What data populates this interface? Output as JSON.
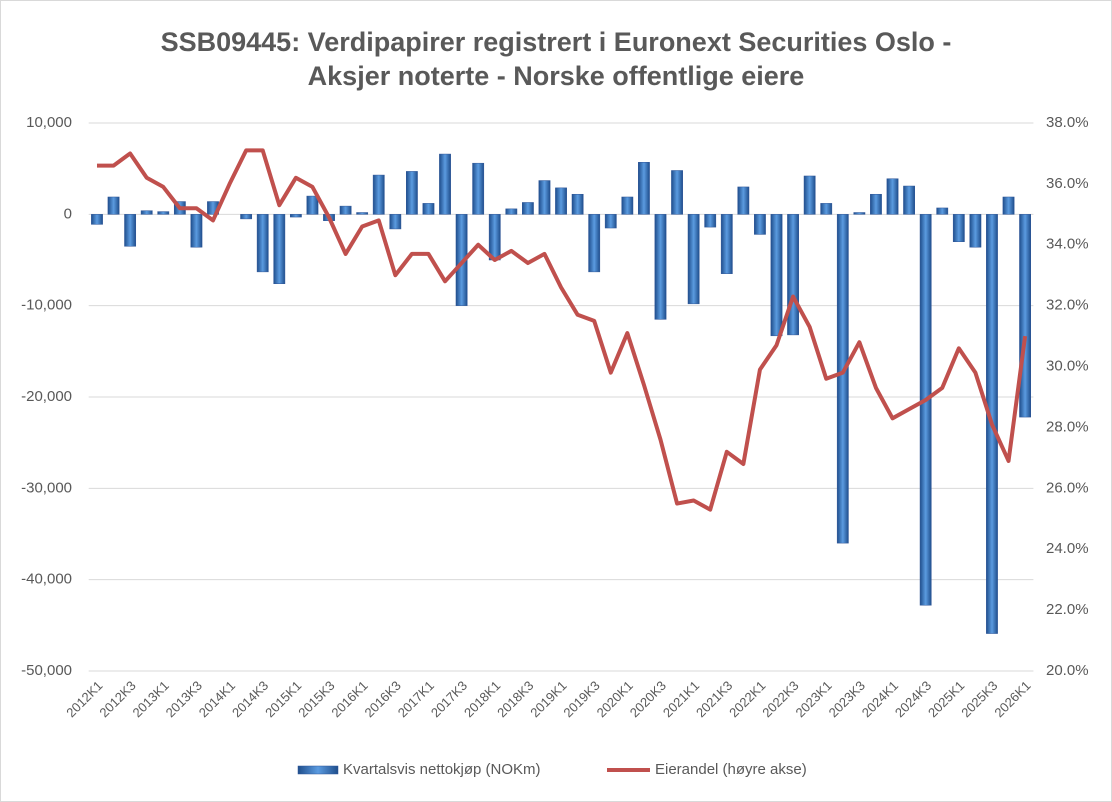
{
  "chart_data": {
    "type": "bar",
    "title": [
      "SSB09445: Verdipapirer registrert i Euronext Securities Oslo -",
      "Aksjer noterte - Norske offentlige eiere"
    ],
    "categories": [
      "2012K1",
      null,
      "2012K3",
      null,
      "2013K1",
      null,
      "2013K3",
      null,
      "2014K1",
      null,
      "2014K3",
      null,
      "2015K1",
      null,
      "2015K3",
      null,
      "2016K1",
      null,
      "2016K3",
      null,
      "2017K1",
      null,
      "2017K3",
      null,
      "2018K1",
      null,
      "2018K3",
      null,
      "2019K1",
      null,
      "2019K3",
      null,
      "2020K1",
      null,
      "2020K3",
      null,
      "2021K1",
      null,
      "2021K3",
      null,
      "2022K1",
      null,
      "2022K3",
      null,
      "2023K1",
      null,
      "2023K3",
      null,
      "2024K1",
      null,
      "2024K3",
      null,
      "2025K1",
      null,
      "2025K3",
      null,
      "2026K1"
    ],
    "series": [
      {
        "name": "Kvartalsvis nettokjøp (NOKm)",
        "type": "bar",
        "color": "#2f5597",
        "axis": "y",
        "values": [
          -1100,
          1900,
          -3500,
          400,
          300,
          1400,
          -3600,
          1400,
          0,
          -500,
          -6300,
          -7600,
          -300,
          2000,
          -700,
          900,
          200,
          4300,
          -1600,
          4700,
          1200,
          6600,
          -10000,
          5600,
          -5000,
          600,
          1300,
          3700,
          2900,
          2200,
          -6300,
          -1500,
          1900,
          5700,
          -11500,
          4800,
          -9800,
          -1400,
          -6500,
          3000,
          -2200,
          -13300,
          -13200,
          4200,
          1200,
          -36000,
          200,
          2200,
          3900,
          3100,
          -42800,
          700,
          -3000,
          -3600,
          -45900,
          1900,
          -22200
        ]
      },
      {
        "name": "Eierandel (høyre akse)",
        "type": "line",
        "color": "#c0504d",
        "axis": "y2",
        "values": [
          36.6,
          36.6,
          37.0,
          36.2,
          35.9,
          35.2,
          35.2,
          34.8,
          36.0,
          37.1,
          37.1,
          35.3,
          36.2,
          35.9,
          34.9,
          33.7,
          34.6,
          34.8,
          33.0,
          33.7,
          33.7,
          32.8,
          33.4,
          34.0,
          33.5,
          33.8,
          33.4,
          33.7,
          32.6,
          31.7,
          31.5,
          29.8,
          31.1,
          29.4,
          27.6,
          25.5,
          25.6,
          25.3,
          27.2,
          26.8,
          29.9,
          30.7,
          32.3,
          31.3,
          29.6,
          29.8,
          30.8,
          29.3,
          28.3,
          28.6,
          28.9,
          29.3,
          30.6,
          29.8,
          28.1,
          26.9,
          31.0
        ]
      }
    ],
    "ylim": [
      -50000,
      10000
    ],
    "yticks": [
      {
        "value": -50000,
        "label": "-50,000"
      },
      {
        "value": -40000,
        "label": "-40,000"
      },
      {
        "value": -30000,
        "label": "-30,000"
      },
      {
        "value": -20000,
        "label": "-20,000"
      },
      {
        "value": -10000,
        "label": "-10,000"
      },
      0,
      {
        "value": 10000,
        "label": "10,000"
      }
    ],
    "y2lim": [
      20,
      38
    ],
    "y2ticks": [
      {
        "value": 20,
        "label": "20.0%"
      },
      {
        "value": 22,
        "label": "22.0%"
      },
      {
        "value": 24,
        "label": "24.0%"
      },
      {
        "value": 26,
        "label": "26.0%"
      },
      {
        "value": 28,
        "label": "28.0%"
      },
      {
        "value": 30,
        "label": "30.0%"
      },
      {
        "value": 32,
        "label": "32.0%"
      },
      {
        "value": 34,
        "label": "34.0%"
      },
      {
        "value": 36,
        "label": "36.0%"
      },
      {
        "value": 38,
        "label": "38.0%"
      }
    ],
    "grid": true,
    "legend": "bottom"
  }
}
